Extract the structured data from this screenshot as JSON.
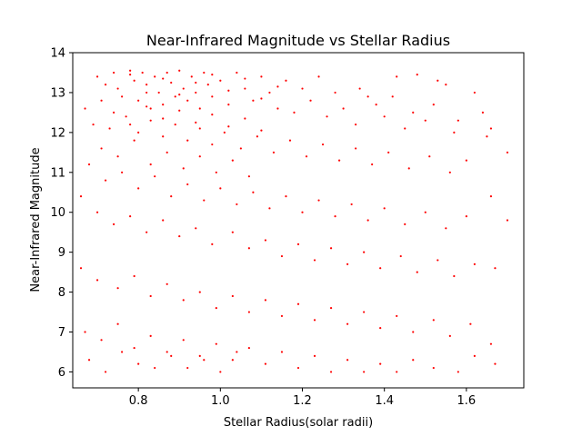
{
  "chart_data": {
    "type": "scatter",
    "title": "Near-Infrared Magnitude vs Stellar Radius",
    "xlabel": "Stellar Radius(solar radii)",
    "ylabel": "Near-Infrared Magnitude",
    "xlim": [
      0.64,
      1.74
    ],
    "ylim": [
      5.6,
      14.0
    ],
    "xticks": [
      0.8,
      1.0,
      1.2,
      1.4,
      1.6
    ],
    "xtick_labels": [
      "0.8",
      "1.0",
      "1.2",
      "1.4",
      "1.6"
    ],
    "yticks": [
      6,
      7,
      8,
      9,
      10,
      11,
      12,
      13,
      14
    ],
    "ytick_labels": [
      "6",
      "7",
      "8",
      "9",
      "10",
      "11",
      "12",
      "13",
      "14"
    ],
    "grid": false,
    "marker_color": "#ff0000",
    "series": [
      {
        "points": [
          [
            0.7,
            13.4
          ],
          [
            0.72,
            13.2
          ],
          [
            0.74,
            13.5
          ],
          [
            0.75,
            13.1
          ],
          [
            0.76,
            12.9
          ],
          [
            0.78,
            13.45
          ],
          [
            0.79,
            13.3
          ],
          [
            0.8,
            12.8
          ],
          [
            0.81,
            13.5
          ],
          [
            0.82,
            13.2
          ],
          [
            0.83,
            12.6
          ],
          [
            0.84,
            13.4
          ],
          [
            0.85,
            13.0
          ],
          [
            0.86,
            12.7
          ],
          [
            0.87,
            13.5
          ],
          [
            0.88,
            13.25
          ],
          [
            0.89,
            12.9
          ],
          [
            0.9,
            13.55
          ],
          [
            0.91,
            13.1
          ],
          [
            0.92,
            12.8
          ],
          [
            0.93,
            13.4
          ],
          [
            0.94,
            13.0
          ],
          [
            0.95,
            12.6
          ],
          [
            0.96,
            13.5
          ],
          [
            0.97,
            13.2
          ],
          [
            0.98,
            12.9
          ],
          [
            1.0,
            13.3
          ],
          [
            1.02,
            12.7
          ],
          [
            1.04,
            13.5
          ],
          [
            1.06,
            13.1
          ],
          [
            1.08,
            12.8
          ],
          [
            1.1,
            13.4
          ],
          [
            1.12,
            13.0
          ],
          [
            1.14,
            12.6
          ],
          [
            1.16,
            13.3
          ],
          [
            1.18,
            12.5
          ],
          [
            1.2,
            13.1
          ],
          [
            1.22,
            12.8
          ],
          [
            1.24,
            13.4
          ],
          [
            1.26,
            12.4
          ],
          [
            1.28,
            13.0
          ],
          [
            1.3,
            12.6
          ],
          [
            1.33,
            12.2
          ],
          [
            1.36,
            12.9
          ],
          [
            1.4,
            12.4
          ],
          [
            1.43,
            13.4
          ],
          [
            1.45,
            12.1
          ],
          [
            1.5,
            12.3
          ],
          [
            1.53,
            13.3
          ],
          [
            1.57,
            12.0
          ],
          [
            0.67,
            12.6
          ],
          [
            0.69,
            12.2
          ],
          [
            0.71,
            12.8
          ],
          [
            0.73,
            12.1
          ],
          [
            0.77,
            12.4
          ],
          [
            0.8,
            12.0
          ],
          [
            0.83,
            12.3
          ],
          [
            0.86,
            11.9
          ],
          [
            0.89,
            12.2
          ],
          [
            0.92,
            11.8
          ],
          [
            0.95,
            12.1
          ],
          [
            0.98,
            11.7
          ],
          [
            1.01,
            12.0
          ],
          [
            1.05,
            11.6
          ],
          [
            1.09,
            11.9
          ],
          [
            1.13,
            11.5
          ],
          [
            1.17,
            11.8
          ],
          [
            1.21,
            11.4
          ],
          [
            1.25,
            11.7
          ],
          [
            1.29,
            11.3
          ],
          [
            1.33,
            11.6
          ],
          [
            1.37,
            11.2
          ],
          [
            1.41,
            11.5
          ],
          [
            1.46,
            11.1
          ],
          [
            1.51,
            11.4
          ],
          [
            1.56,
            11.0
          ],
          [
            1.6,
            11.3
          ],
          [
            1.65,
            11.9
          ],
          [
            1.7,
            11.5
          ],
          [
            1.66,
            12.1
          ],
          [
            0.68,
            11.2
          ],
          [
            0.72,
            10.8
          ],
          [
            0.76,
            11.0
          ],
          [
            0.8,
            10.6
          ],
          [
            0.84,
            10.9
          ],
          [
            0.88,
            10.4
          ],
          [
            0.92,
            10.7
          ],
          [
            0.96,
            10.3
          ],
          [
            1.0,
            10.6
          ],
          [
            1.04,
            10.2
          ],
          [
            1.08,
            10.5
          ],
          [
            1.12,
            10.1
          ],
          [
            1.16,
            10.4
          ],
          [
            1.2,
            10.0
          ],
          [
            1.24,
            10.3
          ],
          [
            1.28,
            9.9
          ],
          [
            1.32,
            10.2
          ],
          [
            1.36,
            9.8
          ],
          [
            1.4,
            10.1
          ],
          [
            1.45,
            9.7
          ],
          [
            1.5,
            10.0
          ],
          [
            1.55,
            9.6
          ],
          [
            1.6,
            9.9
          ],
          [
            1.66,
            10.4
          ],
          [
            1.7,
            9.8
          ],
          [
            0.66,
            10.4
          ],
          [
            0.7,
            10.0
          ],
          [
            0.74,
            9.7
          ],
          [
            0.78,
            9.9
          ],
          [
            0.82,
            9.5
          ],
          [
            0.86,
            9.8
          ],
          [
            0.9,
            9.4
          ],
          [
            0.94,
            9.6
          ],
          [
            0.98,
            9.2
          ],
          [
            1.03,
            9.5
          ],
          [
            1.07,
            9.1
          ],
          [
            1.11,
            9.3
          ],
          [
            1.15,
            8.9
          ],
          [
            1.19,
            9.2
          ],
          [
            1.23,
            8.8
          ],
          [
            1.27,
            9.1
          ],
          [
            1.31,
            8.7
          ],
          [
            1.35,
            9.0
          ],
          [
            1.39,
            8.6
          ],
          [
            1.44,
            8.9
          ],
          [
            1.48,
            8.5
          ],
          [
            1.53,
            8.8
          ],
          [
            1.57,
            8.4
          ],
          [
            1.62,
            8.7
          ],
          [
            1.67,
            8.6
          ],
          [
            0.66,
            8.6
          ],
          [
            0.7,
            8.3
          ],
          [
            0.75,
            8.1
          ],
          [
            0.79,
            8.4
          ],
          [
            0.83,
            7.9
          ],
          [
            0.87,
            8.2
          ],
          [
            0.91,
            7.8
          ],
          [
            0.95,
            8.0
          ],
          [
            0.99,
            7.6
          ],
          [
            1.03,
            7.9
          ],
          [
            1.07,
            7.5
          ],
          [
            1.11,
            7.8
          ],
          [
            1.15,
            7.4
          ],
          [
            1.19,
            7.7
          ],
          [
            1.23,
            7.3
          ],
          [
            1.27,
            7.6
          ],
          [
            1.31,
            7.2
          ],
          [
            1.35,
            7.5
          ],
          [
            1.39,
            7.1
          ],
          [
            1.43,
            7.4
          ],
          [
            1.47,
            7.0
          ],
          [
            1.52,
            7.3
          ],
          [
            1.56,
            6.9
          ],
          [
            1.61,
            7.2
          ],
          [
            1.66,
            6.7
          ],
          [
            0.67,
            7.0
          ],
          [
            0.71,
            6.8
          ],
          [
            0.75,
            7.2
          ],
          [
            0.79,
            6.6
          ],
          [
            0.83,
            6.9
          ],
          [
            0.87,
            6.5
          ],
          [
            0.91,
            6.8
          ],
          [
            0.95,
            6.4
          ],
          [
            0.99,
            6.7
          ],
          [
            1.03,
            6.3
          ],
          [
            1.07,
            6.6
          ],
          [
            1.11,
            6.2
          ],
          [
            1.15,
            6.5
          ],
          [
            1.19,
            6.1
          ],
          [
            1.23,
            6.4
          ],
          [
            1.27,
            6.0
          ],
          [
            1.31,
            6.3
          ],
          [
            1.35,
            6.0
          ],
          [
            1.39,
            6.2
          ],
          [
            1.43,
            6.0
          ],
          [
            1.47,
            6.3
          ],
          [
            1.52,
            6.1
          ],
          [
            1.58,
            6.0
          ],
          [
            1.62,
            6.4
          ],
          [
            1.67,
            6.2
          ],
          [
            0.68,
            6.3
          ],
          [
            0.72,
            6.0
          ],
          [
            0.76,
            6.5
          ],
          [
            0.8,
            6.2
          ],
          [
            0.84,
            6.1
          ],
          [
            0.88,
            6.4
          ],
          [
            0.92,
            6.1
          ],
          [
            0.96,
            6.3
          ],
          [
            1.0,
            6.0
          ],
          [
            1.04,
            6.5
          ],
          [
            0.78,
            13.55
          ],
          [
            0.82,
            13.0
          ],
          [
            0.86,
            13.35
          ],
          [
            0.9,
            12.95
          ],
          [
            0.94,
            13.25
          ],
          [
            0.98,
            13.45
          ],
          [
            1.02,
            13.05
          ],
          [
            1.06,
            13.35
          ],
          [
            1.1,
            12.85
          ],
          [
            1.14,
            13.15
          ],
          [
            0.74,
            12.5
          ],
          [
            0.78,
            12.2
          ],
          [
            0.82,
            12.65
          ],
          [
            0.86,
            12.35
          ],
          [
            0.9,
            12.55
          ],
          [
            0.94,
            12.25
          ],
          [
            0.98,
            12.45
          ],
          [
            1.02,
            12.15
          ],
          [
            1.06,
            12.35
          ],
          [
            1.1,
            12.05
          ],
          [
            0.71,
            11.6
          ],
          [
            0.75,
            11.4
          ],
          [
            0.79,
            11.8
          ],
          [
            0.83,
            11.2
          ],
          [
            0.87,
            11.5
          ],
          [
            0.91,
            11.1
          ],
          [
            0.95,
            11.4
          ],
          [
            0.99,
            11.0
          ],
          [
            1.03,
            11.3
          ],
          [
            1.07,
            10.9
          ],
          [
            1.34,
            13.1
          ],
          [
            1.38,
            12.7
          ],
          [
            1.42,
            12.9
          ],
          [
            1.47,
            12.5
          ],
          [
            1.52,
            12.7
          ],
          [
            1.58,
            12.3
          ],
          [
            1.62,
            13.0
          ],
          [
            1.48,
            13.45
          ],
          [
            1.55,
            13.2
          ],
          [
            1.64,
            12.5
          ]
        ]
      }
    ]
  }
}
